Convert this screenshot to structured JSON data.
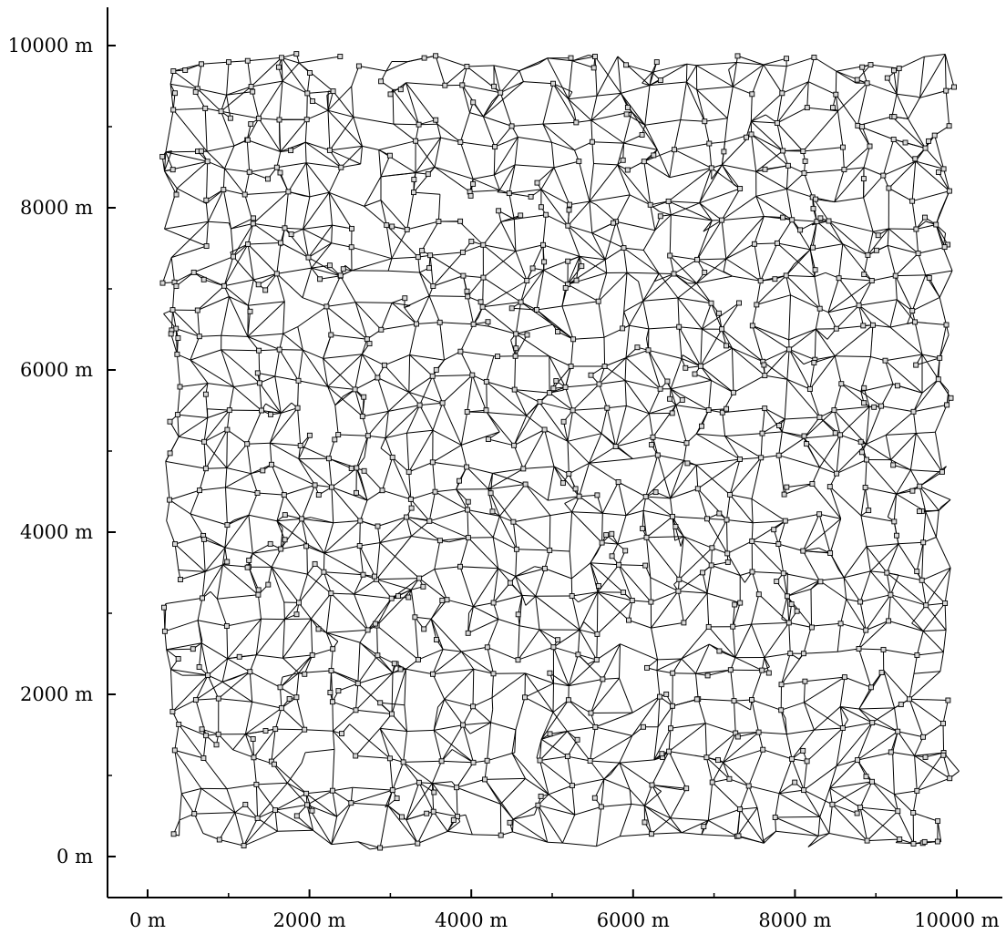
{
  "figure": {
    "type": "road-network-graph",
    "x_axis": {
      "range_m": [
        -500,
        10500
      ],
      "major_ticks": [
        {
          "value": 0,
          "label": "0 m"
        },
        {
          "value": 2000,
          "label": "2000 m"
        },
        {
          "value": 4000,
          "label": "4000 m"
        },
        {
          "value": 6000,
          "label": "6000 m"
        },
        {
          "value": 8000,
          "label": "8000 m"
        },
        {
          "value": 10000,
          "label": "10000 m"
        }
      ],
      "minor_ticks": [
        1000,
        3000,
        5000,
        7000,
        9000
      ]
    },
    "y_axis": {
      "range_m": [
        -600,
        10500
      ],
      "major_ticks": [
        {
          "value": 0,
          "label": "0 m"
        },
        {
          "value": 2000,
          "label": "2000 m"
        },
        {
          "value": 4000,
          "label": "4000 m"
        },
        {
          "value": 6000,
          "label": "6000 m"
        },
        {
          "value": 8000,
          "label": "8000 m"
        },
        {
          "value": 10000,
          "label": "10000 m"
        }
      ],
      "minor_ticks": [
        1000,
        3000,
        5000,
        7000,
        9000
      ]
    },
    "colors": {
      "edge": "#000000",
      "node_fill": "#d9d9d9",
      "node_stroke": "#000000"
    }
  }
}
